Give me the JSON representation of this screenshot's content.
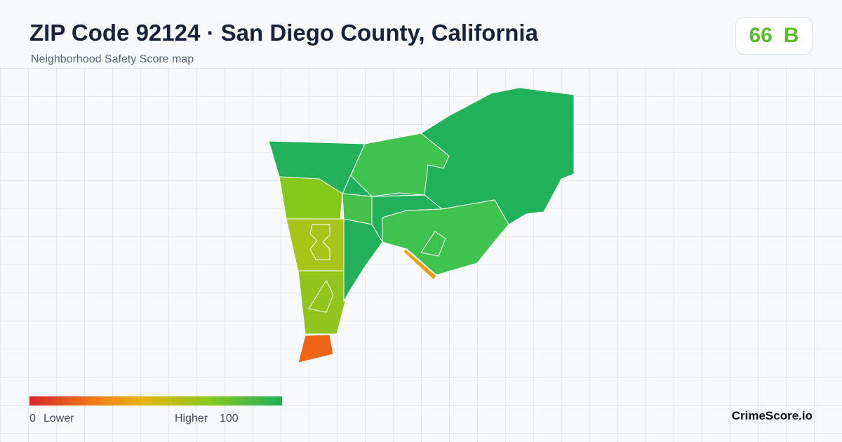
{
  "header": {
    "title": "ZIP Code 92124 · San Diego County, California",
    "subtitle": "Neighborhood Safety Score map"
  },
  "score": {
    "value": 66,
    "grade": "B"
  },
  "legend": {
    "min": 0,
    "min_label": "Lower",
    "max_label": "Higher",
    "max": 100
  },
  "brand": "CrimeScore.io"
}
